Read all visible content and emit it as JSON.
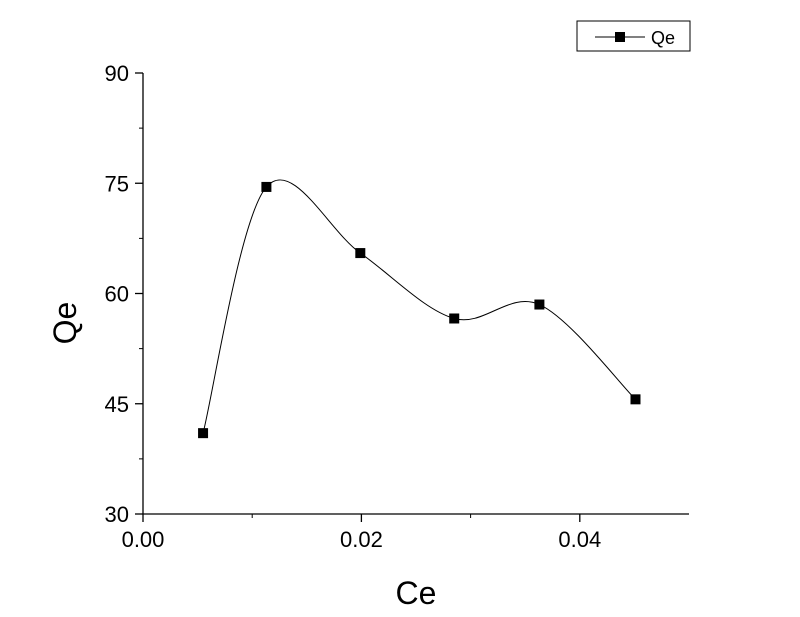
{
  "chart_data": {
    "type": "line",
    "title": "",
    "xlabel": "Ce",
    "ylabel": "Qe",
    "xlim": [
      0,
      0.05
    ],
    "ylim": [
      30,
      90
    ],
    "x_ticks": [
      0.0,
      0.02,
      0.04
    ],
    "x_tick_labels": [
      "0.00",
      "0.02",
      "0.04"
    ],
    "y_ticks": [
      30,
      45,
      60,
      75,
      90
    ],
    "y_tick_labels": [
      "30",
      "45",
      "60",
      "75",
      "90"
    ],
    "x_minor_step": 0.01,
    "y_minor_step": 7.5,
    "grid": false,
    "legend_position": "top-right",
    "series": [
      {
        "name": "Qe",
        "marker": "square",
        "line": "smooth",
        "color": "#000000",
        "x": [
          0.0055,
          0.0113,
          0.0199,
          0.0285,
          0.0363,
          0.0451
        ],
        "y": [
          41.0,
          74.5,
          65.5,
          56.6,
          58.5,
          45.6
        ]
      }
    ]
  }
}
